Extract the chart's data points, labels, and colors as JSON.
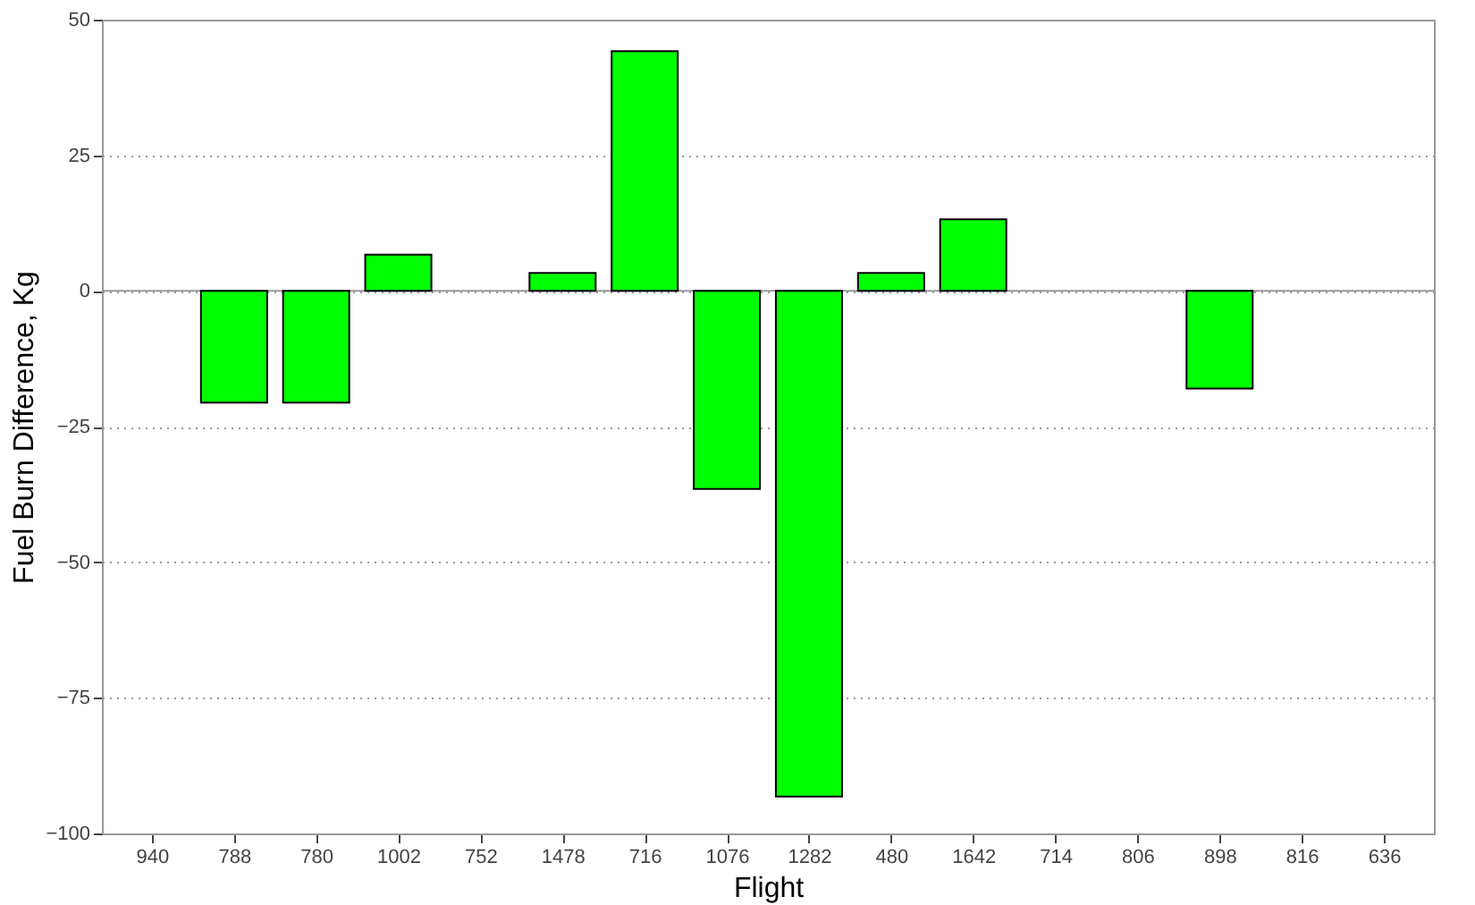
{
  "chart_data": {
    "type": "bar",
    "xlabel": "Flight",
    "ylabel": "Fuel Burn Difference, Kg",
    "categories": [
      "940",
      "788",
      "780",
      "1002",
      "752",
      "1478",
      "716",
      "1076",
      "1282",
      "480",
      "1642",
      "714",
      "806",
      "898",
      "816",
      "636"
    ],
    "series": [
      {
        "color": "#00ff00",
        "values": [
          0,
          -20.6,
          -20.6,
          6.7,
          0,
          3.3,
          44.2,
          -36.5,
          -93.2,
          3.3,
          13.2,
          0,
          0,
          -18.0,
          0,
          0
        ]
      }
    ],
    "ylim": [
      -100,
      50
    ],
    "yticks": [
      -100,
      -75,
      -50,
      -25,
      0,
      25,
      50
    ],
    "grid": "y"
  }
}
